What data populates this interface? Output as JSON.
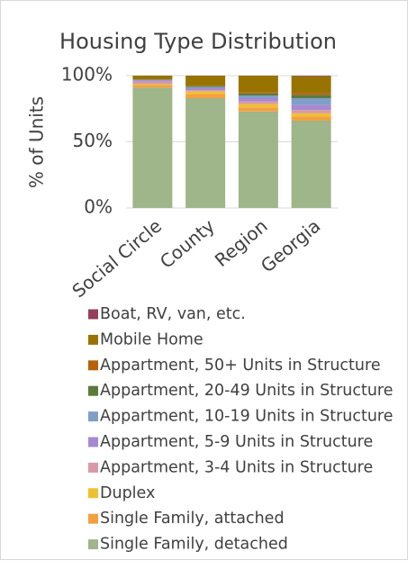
{
  "chart_data": {
    "type": "stacked_bar",
    "title": "Housing Type Distribution",
    "y_label": "% of Units",
    "categories": [
      "Social Circle",
      "County",
      "Region",
      "Georgia"
    ],
    "series": [
      {
        "name": "Single Family, detached",
        "color": "#9fb58a",
        "values": [
          91,
          83,
          73,
          66
        ]
      },
      {
        "name": "Single Family, attached",
        "color": "#f4a040",
        "values": [
          1.5,
          3,
          3,
          3
        ]
      },
      {
        "name": "Duplex",
        "color": "#f0c030",
        "values": [
          1,
          2,
          2.5,
          2.5
        ]
      },
      {
        "name": "Appartment, 3-4 Units in Structure",
        "color": "#d99aa5",
        "values": [
          2,
          1,
          2,
          2.5
        ]
      },
      {
        "name": "Appartment, 5-9 Units in Structure",
        "color": "#a58ad1",
        "values": [
          1,
          1.5,
          2.5,
          4
        ]
      },
      {
        "name": "Appartment, 10-19 Units in Structure",
        "color": "#7f9fc8",
        "values": [
          0.5,
          1,
          2,
          5
        ]
      },
      {
        "name": "Appartment, 20-49 Units in Structure",
        "color": "#5b7a3c",
        "values": [
          0,
          0.5,
          1.5,
          2.5
        ]
      },
      {
        "name": "Appartment, 50+ Units in Structure",
        "color": "#b8600b",
        "values": [
          0,
          0,
          1,
          1.5
        ]
      },
      {
        "name": "Mobile Home",
        "color": "#987300",
        "values": [
          3,
          8,
          12.5,
          12.5
        ]
      },
      {
        "name": "Boat, RV, van, etc.",
        "color": "#943f5c",
        "values": [
          0,
          0,
          0,
          0.5
        ]
      }
    ],
    "ylim": [
      0,
      100
    ],
    "yticks": [
      {
        "value": 0,
        "label": "0%"
      },
      {
        "value": 50,
        "label": "50%"
      },
      {
        "value": 100,
        "label": "100%"
      }
    ],
    "grid": true
  }
}
